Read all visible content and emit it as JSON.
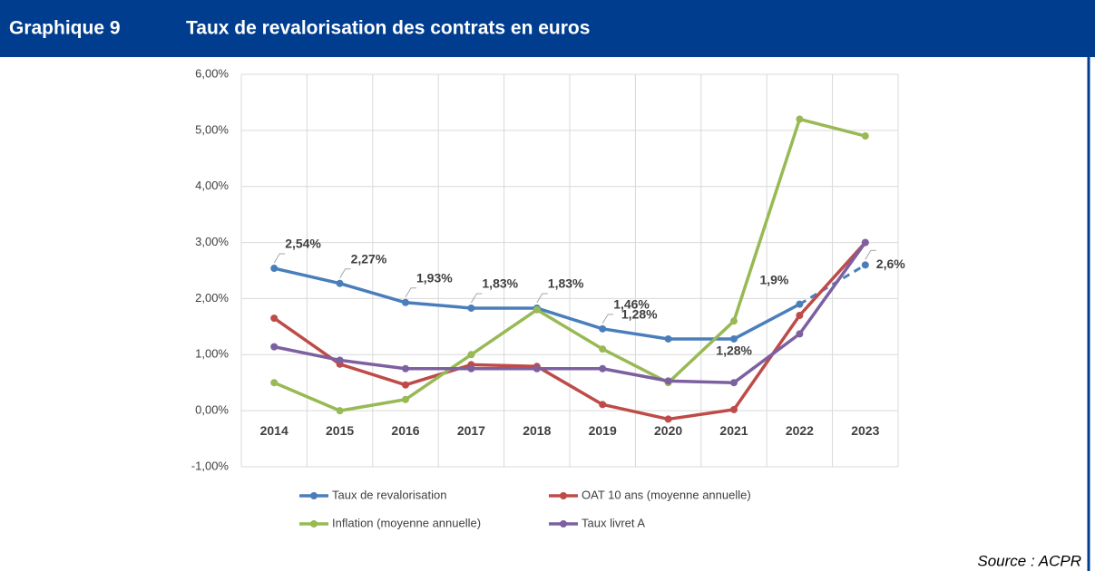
{
  "header": {
    "label": "Graphique 9",
    "title": "Taux de revalorisation des contrats en euros"
  },
  "chart_data": {
    "type": "line",
    "categories": [
      "2014",
      "2015",
      "2016",
      "2017",
      "2018",
      "2019",
      "2020",
      "2021",
      "2022",
      "2023"
    ],
    "series": [
      {
        "name": "Taux de revalorisation",
        "color": "#4a7ebb",
        "values": [
          2.54,
          2.27,
          1.93,
          1.83,
          1.83,
          1.46,
          1.28,
          1.28,
          1.9,
          2.6
        ],
        "value_labels": [
          "2,54%",
          "2,27%",
          "1,93%",
          "1,83%",
          "1,83%",
          "1,46%",
          "1,28%",
          "1,28%",
          "1,9%",
          "2,6%"
        ],
        "dashed_last_segment": true
      },
      {
        "name": "OAT 10 ans (moyenne annuelle)",
        "color": "#be4b48",
        "values": [
          1.65,
          0.83,
          0.46,
          0.82,
          0.79,
          0.11,
          -0.15,
          0.02,
          1.7,
          3.0
        ]
      },
      {
        "name": "Inflation (moyenne annuelle)",
        "color": "#98b954",
        "values": [
          0.5,
          0.0,
          0.2,
          1.0,
          1.8,
          1.1,
          0.5,
          1.6,
          5.2,
          4.9
        ]
      },
      {
        "name": "Taux livret A",
        "color": "#7d60a0",
        "values": [
          1.14,
          0.9,
          0.75,
          0.75,
          0.75,
          0.75,
          0.53,
          0.5,
          1.37,
          3.0
        ]
      }
    ],
    "ylim": [
      -1,
      6
    ],
    "yticks": [
      {
        "value": -1,
        "label": "-1,00%"
      },
      {
        "value": 0,
        "label": "0,00%"
      },
      {
        "value": 1,
        "label": "1,00%"
      },
      {
        "value": 2,
        "label": "2,00%"
      },
      {
        "value": 3,
        "label": "3,00%"
      },
      {
        "value": 4,
        "label": "4,00%"
      },
      {
        "value": 5,
        "label": "5,00%"
      },
      {
        "value": 6,
        "label": "6,00%"
      }
    ],
    "grid": true
  },
  "source": "Source : ACPR"
}
